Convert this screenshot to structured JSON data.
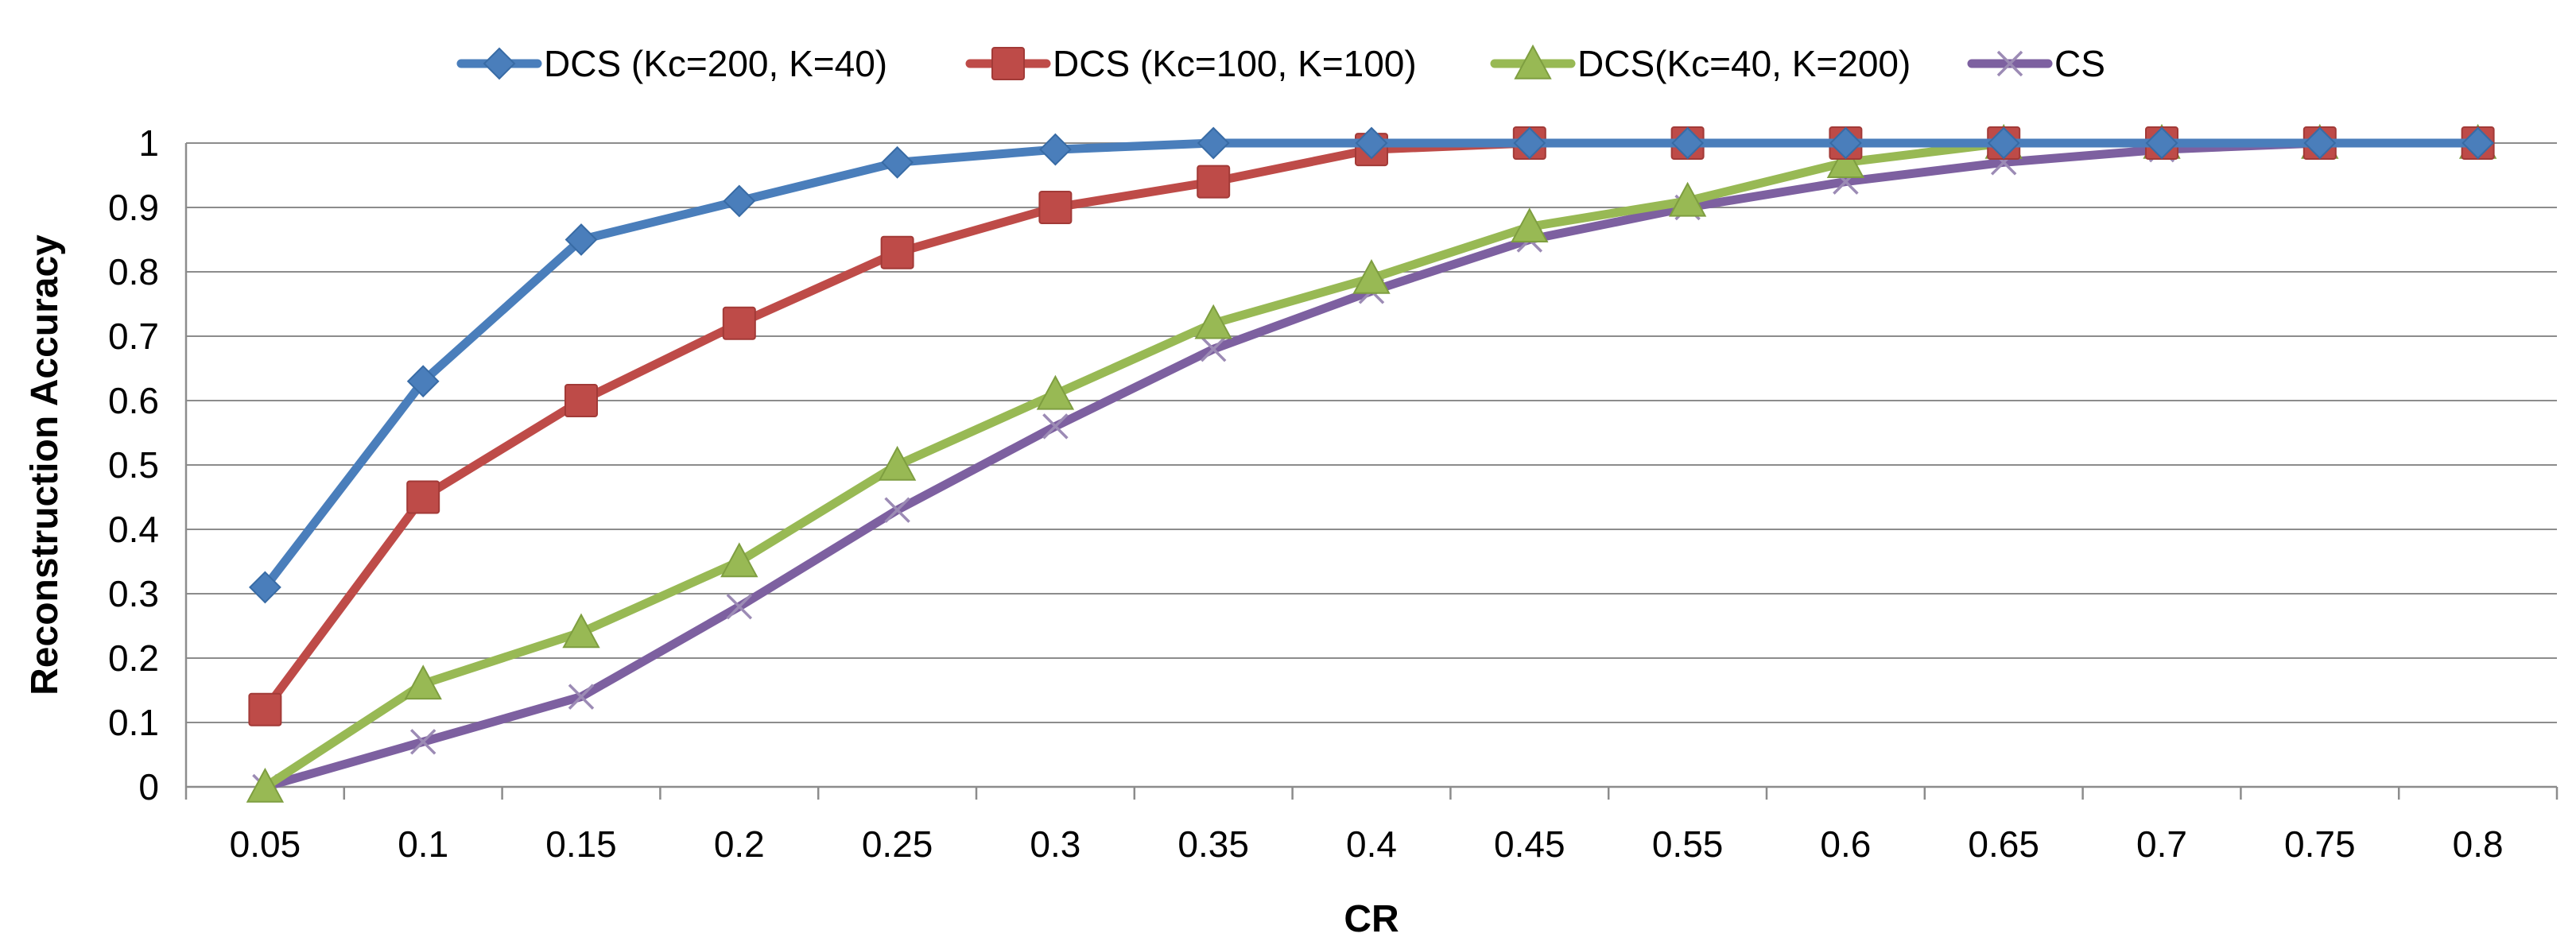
{
  "chart_data": {
    "type": "line",
    "title": "",
    "xlabel": "CR",
    "ylabel": "Reconstruction Accuracy",
    "categories": [
      "0.05",
      "0.1",
      "0.15",
      "0.2",
      "0.25",
      "0.3",
      "0.35",
      "0.4",
      "0.45",
      "0.55",
      "0.6",
      "0.65",
      "0.7",
      "0.75",
      "0.8"
    ],
    "ylim": [
      0,
      1
    ],
    "yticks": [
      "0",
      "0.1",
      "0.2",
      "0.3",
      "0.4",
      "0.5",
      "0.6",
      "0.7",
      "0.8",
      "0.9",
      "1"
    ],
    "grid": true,
    "legend_position": "top",
    "series": [
      {
        "name": "DCS (Kc=200, K=40)",
        "color": "#4A7EBB",
        "marker": "diamond",
        "values": [
          0.31,
          0.63,
          0.85,
          0.91,
          0.97,
          0.99,
          1.0,
          1.0,
          1.0,
          1.0,
          1.0,
          1.0,
          1.0,
          1.0,
          1.0
        ]
      },
      {
        "name": "DCS (Kc=100, K=100)",
        "color": "#BE4B48",
        "marker": "square",
        "values": [
          0.12,
          0.45,
          0.6,
          0.72,
          0.83,
          0.9,
          0.94,
          0.99,
          1.0,
          1.0,
          1.0,
          1.0,
          1.0,
          1.0,
          1.0
        ]
      },
      {
        "name": "DCS(Kc=40, K=200)",
        "color": "#98B954",
        "marker": "triangle",
        "values": [
          0.0,
          0.16,
          0.24,
          0.35,
          0.5,
          0.61,
          0.72,
          0.79,
          0.87,
          0.91,
          0.97,
          1.0,
          1.0,
          1.0,
          1.0
        ]
      },
      {
        "name": "CS",
        "color": "#7D60A0",
        "marker": "x",
        "values": [
          0.0,
          0.07,
          0.14,
          0.28,
          0.43,
          0.56,
          0.68,
          0.77,
          0.85,
          0.9,
          0.94,
          0.97,
          0.99,
          1.0,
          1.0
        ]
      }
    ]
  }
}
